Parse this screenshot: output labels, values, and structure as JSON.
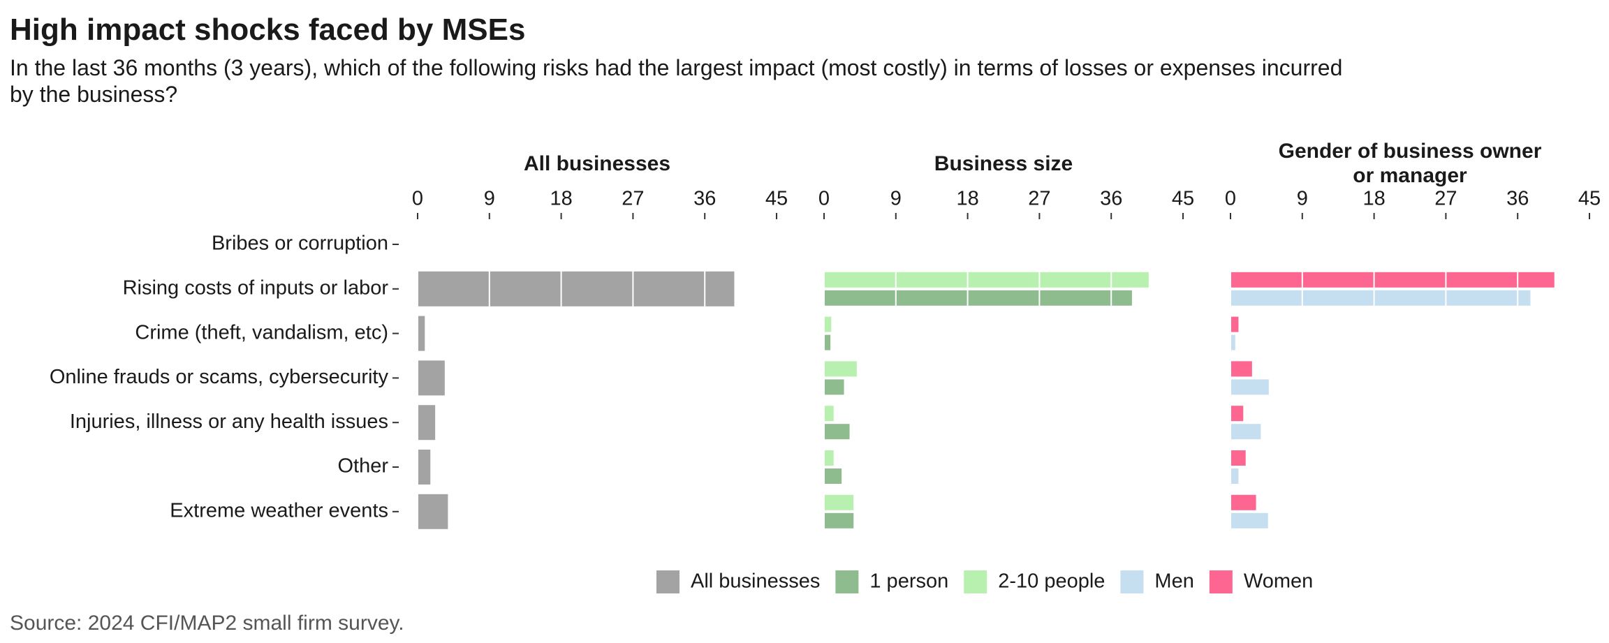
{
  "chart_data": {
    "type": "bar",
    "orientation": "horizontal",
    "title": "High impact shocks faced by MSEs",
    "subtitle": "In the last 36 months (3 years), which of the following risks had the largest impact (most costly) in terms of losses or expenses incurred by the business?",
    "source": "Source: 2024 CFI/MAP2 small firm survey.",
    "legend": "bottom",
    "grid": true,
    "categories": [
      "Bribes or corruption",
      "Rising costs of inputs or labor",
      "Crime (theft, vandalism, etc)",
      "Online frauds or scams, cybersecurity",
      "Injuries, illness or any health issues",
      "Other",
      "Extreme weather events"
    ],
    "panels": [
      {
        "title": "All businesses",
        "xlim": [
          0,
          45
        ],
        "xticks": [
          0,
          9,
          18,
          27,
          36,
          45
        ],
        "series": [
          {
            "name": "All businesses",
            "color": "#a3a3a3",
            "values": [
              0,
              39.7,
              0.9,
              3.4,
              2.2,
              1.6,
              3.8
            ]
          }
        ]
      },
      {
        "title": "Business size",
        "xlim": [
          0,
          45
        ],
        "xticks": [
          0,
          9,
          18,
          27,
          36,
          45
        ],
        "series": [
          {
            "name": "1 person",
            "color": "#8fbc8f",
            "values": [
              0,
              38.6,
              0.8,
              2.5,
              3.2,
              2.2,
              3.7
            ]
          },
          {
            "name": "2-10 people",
            "color": "#b8f0b0",
            "values": [
              0,
              40.7,
              0.9,
              4.1,
              1.2,
              1.2,
              3.7
            ]
          }
        ]
      },
      {
        "title": "Gender of business owner\nor manager",
        "xlim": [
          0,
          45
        ],
        "xticks": [
          0,
          9,
          18,
          27,
          36,
          45
        ],
        "series": [
          {
            "name": "Men",
            "color": "#c6dff0",
            "values": [
              0,
              37.6,
              0.6,
              4.8,
              3.8,
              1.0,
              4.7
            ]
          },
          {
            "name": "Women",
            "color": "#fc6691",
            "values": [
              0,
              40.6,
              1.0,
              2.7,
              1.6,
              1.9,
              3.2
            ]
          }
        ]
      }
    ]
  }
}
